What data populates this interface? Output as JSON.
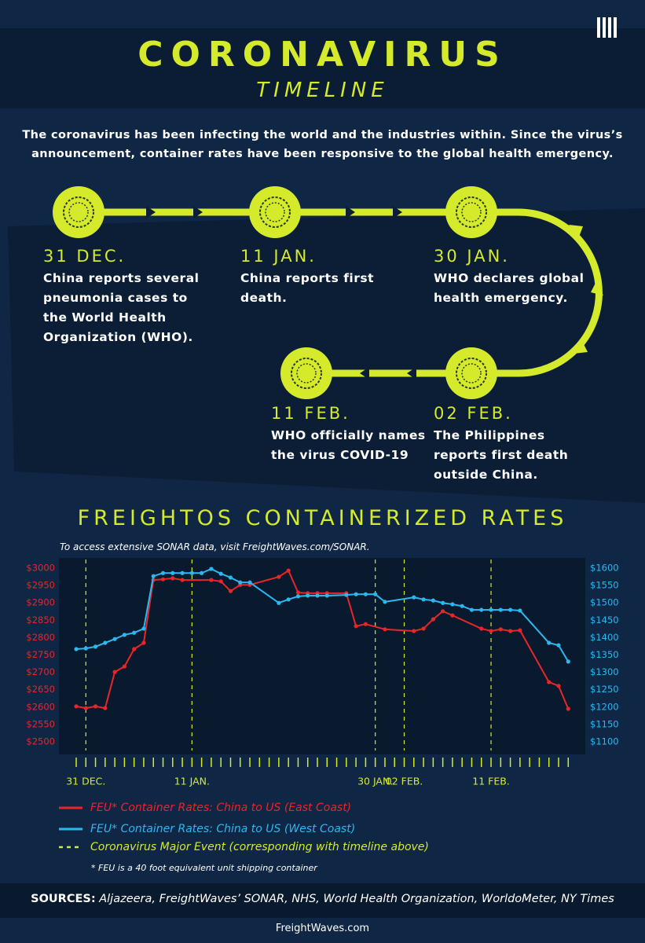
{
  "header": {
    "title": "CORONAVIRUS",
    "subtitle": "TIMELINE"
  },
  "intro": "The coronavirus has been infecting the world and the industries within. Since the virus’s announcement, container rates have been responsive to the global health emergency.",
  "timeline": [
    {
      "date": "31 DEC.",
      "text": "China reports several pneumonia cases to the World Health Organization (WHO)."
    },
    {
      "date": "11 JAN.",
      "text": "China reports first death."
    },
    {
      "date": "30 JAN.",
      "text": "WHO declares global health emergency."
    },
    {
      "date": "02 FEB.",
      "text": "The Philippines reports first death outside China."
    },
    {
      "date": "11 FEB.",
      "text": "WHO officially names the virus COVID-19"
    }
  ],
  "chart_data": {
    "type": "line",
    "title": "FREIGHTOS CONTAINERIZED RATES",
    "subtitle": "To access extensive SONAR data, visit FreightWaves.com/SONAR.",
    "categories": [
      null,
      "31 DEC.",
      null,
      null,
      null,
      null,
      null,
      null,
      null,
      null,
      null,
      null,
      "11 JAN.",
      null,
      null,
      null,
      null,
      null,
      null,
      null,
      null,
      null,
      null,
      null,
      null,
      null,
      null,
      null,
      null,
      null,
      null,
      "30 JAN.",
      null,
      null,
      "02 FEB.",
      null,
      null,
      null,
      null,
      null,
      null,
      null,
      null,
      "11 FEB.",
      null,
      null,
      null,
      null,
      null,
      null,
      null,
      null
    ],
    "series": [
      {
        "name": "FEU* Container Rates: China to US (East Coast)",
        "color": "#e8262a",
        "axis": "y",
        "values": [
          2602,
          2597,
          2602,
          2597,
          2701,
          2717,
          2767,
          2785,
          2966,
          2968,
          2971,
          2966,
          null,
          null,
          2966,
          2962,
          2934,
          2952,
          2952,
          null,
          null,
          2975,
          2993,
          2930,
          2928,
          2928,
          2928,
          null,
          2928,
          2833,
          2839,
          null,
          2824,
          null,
          null,
          2819,
          2826,
          2853,
          2876,
          2864,
          null,
          null,
          2826,
          2819,
          2824,
          2819,
          2821,
          null,
          null,
          2672,
          2661,
          2595
        ]
      },
      {
        "name": "FEU* Container Rates: China to US (West Coast)",
        "color": "#2bb8f0",
        "axis": "y2",
        "values": [
          1367,
          1369,
          1374,
          1385,
          1396,
          1408,
          1414,
          1426,
          1577,
          1586,
          1586,
          1586,
          1586,
          1586,
          1598,
          1584,
          1573,
          1559,
          1559,
          null,
          null,
          1500,
          1510,
          1519,
          1521,
          1521,
          1521,
          null,
          1523,
          1525,
          1525,
          1525,
          1503,
          null,
          null,
          1516,
          1510,
          1507,
          1500,
          1496,
          1491,
          1480,
          1480,
          1480,
          1480,
          1480,
          1478,
          null,
          null,
          1385,
          1378,
          1331
        ]
      }
    ],
    "event_legend": "Coronavirus Major Event (corresponding with timeline above)",
    "event_color": "#d4ea2a",
    "ylim": [
      2475,
      3025
    ],
    "yticks": [
      {
        "value": 2500,
        "label": "$2500"
      },
      {
        "value": 2550,
        "label": "$2550"
      },
      {
        "value": 2600,
        "label": "$2600"
      },
      {
        "value": 2650,
        "label": "$2650"
      },
      {
        "value": 2700,
        "label": "$2700"
      },
      {
        "value": 2750,
        "label": "$2750"
      },
      {
        "value": 2800,
        "label": "$2800"
      },
      {
        "value": 2850,
        "label": "$2850"
      },
      {
        "value": 2900,
        "label": "$2900"
      },
      {
        "value": 2950,
        "label": "$2950"
      },
      {
        "value": 3000,
        "label": "$3000"
      }
    ],
    "y2lim": [
      1075,
      1625
    ],
    "y2ticks": [
      {
        "value": 1100,
        "label": "$1100"
      },
      {
        "value": 1150,
        "label": "$1150"
      },
      {
        "value": 1200,
        "label": "$1200"
      },
      {
        "value": 1250,
        "label": "$1250"
      },
      {
        "value": 1300,
        "label": "$1300"
      },
      {
        "value": 1350,
        "label": "$1350"
      },
      {
        "value": 1400,
        "label": "$1400"
      },
      {
        "value": 1450,
        "label": "$1450"
      },
      {
        "value": 1500,
        "label": "$1500"
      },
      {
        "value": 1550,
        "label": "$1550"
      },
      {
        "value": 1600,
        "label": "$1600"
      }
    ],
    "footnote": "* FEU is a 40 foot equivalent unit shipping container"
  },
  "sources": {
    "label": "SOURCES:",
    "text": "Aljazeera, FreightWaves’ SONAR, NHS, World Health Organization, WorldoMeter, NY Times"
  },
  "footer": "FreightWaves.com"
}
